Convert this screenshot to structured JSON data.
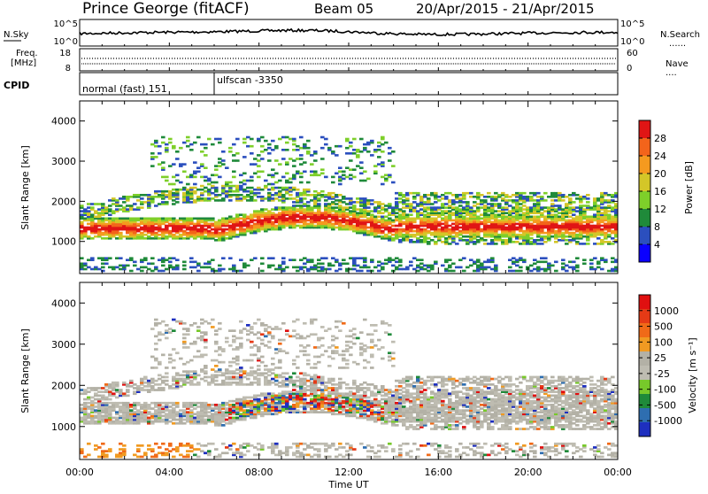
{
  "header": {
    "station": "Prince George (fitACF)",
    "beam": "Beam 05",
    "date_range": "20/Apr/2015 - 21/Apr/2015"
  },
  "labels": {
    "nsky": "N.Sky",
    "nsearch": "N.Search",
    "freq_line1": "Freq.",
    "freq_line2": "[MHz]",
    "nave": "Nave",
    "cpid": "CPID",
    "nsky_ticks": [
      "10^5",
      "10^0"
    ],
    "nsky_right_ticks": [
      "10^5",
      "10^0"
    ],
    "freq_ticks": [
      "18",
      "8"
    ],
    "nave_ticks": [
      "60",
      "0"
    ]
  },
  "cpid_modes": [
    {
      "label": "normal (fast) 151",
      "start_hour": 0
    },
    {
      "label": "ulfscan -3350",
      "start_hour": 6.0
    }
  ],
  "colors": {
    "power_scale": [
      "#0a00ff",
      "#2b4fbe",
      "#1f8a3a",
      "#7ecf2a",
      "#d4c628",
      "#f59a1f",
      "#f3641b",
      "#e01515"
    ],
    "velocity_scale": [
      "#1e2fbf",
      "#2e6eb0",
      "#1f8a3a",
      "#77c92a",
      "#bebcb1",
      "#b3b1a6",
      "#f09a22",
      "#f06a18",
      "#e53a16",
      "#e01010"
    ]
  },
  "chart_data": [
    {
      "type": "heatmap",
      "title": "",
      "ylabel": "Slant Range [km]",
      "xlabel": "",
      "ylim": [
        200,
        4500
      ],
      "xlim_hours": [
        0,
        24
      ],
      "x_ticks": [
        "00:00",
        "04:00",
        "08:00",
        "12:00",
        "16:00",
        "20:00",
        "00:00"
      ],
      "y_ticks": [
        1000,
        2000,
        3000,
        4000
      ],
      "colorbar": {
        "label": "Power [dB]",
        "ticks": [
          4,
          8,
          12,
          16,
          20,
          24,
          28
        ],
        "range": [
          0,
          32
        ]
      }
    },
    {
      "type": "heatmap",
      "title": "",
      "ylabel": "Slant Range [km]",
      "xlabel": "Time UT",
      "ylim": [
        200,
        4500
      ],
      "xlim_hours": [
        0,
        24
      ],
      "x_ticks": [
        "00:00",
        "04:00",
        "08:00",
        "12:00",
        "16:00",
        "20:00",
        "00:00"
      ],
      "y_ticks": [
        1000,
        2000,
        3000,
        4000
      ],
      "colorbar": {
        "label": "Velocity [m s⁻¹]",
        "ticks": [
          1000,
          500,
          100,
          25,
          -25,
          -100,
          -500,
          -1000
        ]
      }
    }
  ]
}
